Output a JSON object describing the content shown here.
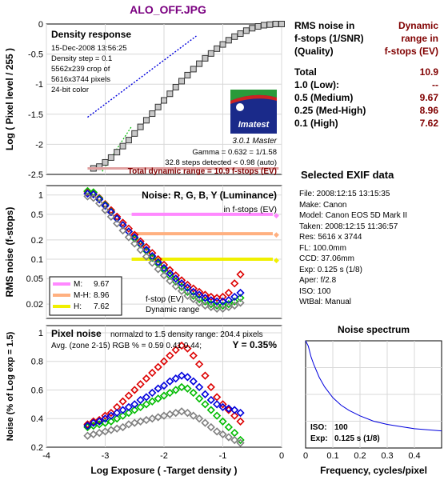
{
  "title": "ALO_OFF.JPG",
  "stats": {
    "header_left": [
      "RMS noise in",
      "f-stops (1/SNR)",
      "(Quality)"
    ],
    "header_right": [
      "Dynamic",
      "range in",
      "f-stops (EV)"
    ],
    "rows": [
      {
        "label": "Total",
        "value": "10.9"
      },
      {
        "label": "1.0   (Low):",
        "value": "--"
      },
      {
        "label": "0.5   (Medium)",
        "value": "9.67"
      },
      {
        "label": "0.25 (Med-High)",
        "value": "8.96"
      },
      {
        "label": "0.1   (High)",
        "value": "7.62"
      }
    ]
  },
  "exif": {
    "title": "Selected EXIF data",
    "lines": [
      "File:  2008:12:15 13:15:35",
      "Make:  Canon",
      "Model: Canon EOS 5D Mark II",
      "Taken: 2008:12:15 11:36:57",
      "Res:   5616 x 3744",
      "FL:  100.0mm",
      "CCD:   37.06mm",
      "Exp:   0.125 s  (1/8)",
      "Aper:  f/2.8",
      "ISO:   100",
      "WtBal:  Manual"
    ]
  },
  "colors": {
    "red": "#dd0000",
    "green": "#00bb00",
    "blue": "#0000dd",
    "gray": "#808080",
    "magenta": "#ff88ff",
    "orange": "#ffb080",
    "yellow": "#f0f000",
    "dark_red": "#800000"
  },
  "chart_data": [
    {
      "type": "line",
      "title": "Density response",
      "info_lines": [
        "15-Dec-2008 13:56:25",
        "Density step = 0.1",
        "5562x239 crop of",
        "5616x3744 pixels",
        "24-bit color"
      ],
      "ylabel": "Log ( Pixel level / 255 )",
      "xlim": [
        -4,
        0
      ],
      "ylim": [
        -2.5,
        0
      ],
      "yticks": [
        "0",
        "-0.5",
        "-1",
        "-1.5",
        "-2",
        "-2.5"
      ],
      "logo_text": "Imatest",
      "version_text": "3.0.1  Master",
      "gamma_text": "Gamma = 0.632 = 1/1.58",
      "steps_text": "32.8 steps detected < 0.98 (auto)",
      "dynamic_range_text": "Total dynamic range = 10.9 f-stops (EV)",
      "x": [
        -3.2,
        -3.1,
        -3.0,
        -2.9,
        -2.8,
        -2.7,
        -2.6,
        -2.5,
        -2.4,
        -2.3,
        -2.2,
        -2.1,
        -2.0,
        -1.9,
        -1.8,
        -1.7,
        -1.6,
        -1.5,
        -1.4,
        -1.3,
        -1.2,
        -1.1,
        -1.0,
        -0.9,
        -0.8,
        -0.7,
        -0.6,
        -0.5,
        -0.4,
        -0.3,
        -0.2,
        -0.1,
        0.0
      ],
      "y": [
        -2.4,
        -2.37,
        -2.3,
        -2.22,
        -2.13,
        -2.03,
        -1.93,
        -1.82,
        -1.71,
        -1.6,
        -1.49,
        -1.38,
        -1.27,
        -1.16,
        -1.05,
        -0.95,
        -0.85,
        -0.75,
        -0.66,
        -0.57,
        -0.49,
        -0.41,
        -0.34,
        -0.27,
        -0.21,
        -0.16,
        -0.11,
        -0.07,
        -0.04,
        -0.02,
        -0.01,
        0.0,
        0.0
      ]
    },
    {
      "type": "line",
      "title": "Noise: R, G, B, Y (Luminance)",
      "subtitle": "in f-stops (EV)",
      "ylabel": "RMS noise (f-stops)",
      "xlim": [
        -4,
        0
      ],
      "ylim_log": [
        0.012,
        1.4
      ],
      "yticks": [
        "1",
        "0.5",
        "0.2",
        "0.1",
        "0.05",
        "0.02"
      ],
      "legend": [
        {
          "label": "M:",
          "value": "9.67"
        },
        {
          "label": "M-H:",
          "value": "8.96"
        },
        {
          "label": "H:",
          "value": "7.62"
        }
      ],
      "annotation_lines": [
        "f-stop (EV)",
        "Dynamic range"
      ],
      "x": [
        -3.3,
        -3.2,
        -3.1,
        -3.0,
        -2.9,
        -2.8,
        -2.7,
        -2.6,
        -2.5,
        -2.4,
        -2.3,
        -2.2,
        -2.1,
        -2.0,
        -1.9,
        -1.8,
        -1.7,
        -1.6,
        -1.5,
        -1.4,
        -1.3,
        -1.2,
        -1.1,
        -1.0,
        -0.9,
        -0.8,
        -0.7
      ],
      "series": [
        {
          "name": "R",
          "values": [
            1.12,
            1.08,
            0.9,
            0.72,
            0.58,
            0.46,
            0.37,
            0.3,
            0.24,
            0.19,
            0.155,
            0.125,
            0.1,
            0.082,
            0.068,
            0.056,
            0.047,
            0.04,
            0.035,
            0.031,
            0.028,
            0.026,
            0.025,
            0.026,
            0.03,
            0.042,
            0.058
          ]
        },
        {
          "name": "G",
          "values": [
            1.15,
            1.1,
            0.88,
            0.7,
            0.55,
            0.43,
            0.34,
            0.27,
            0.21,
            0.17,
            0.135,
            0.105,
            0.085,
            0.068,
            0.055,
            0.045,
            0.037,
            0.031,
            0.027,
            0.024,
            0.022,
            0.02,
            0.019,
            0.019,
            0.02,
            0.022,
            0.025
          ]
        },
        {
          "name": "B",
          "values": [
            1.05,
            1.02,
            0.85,
            0.68,
            0.54,
            0.43,
            0.34,
            0.27,
            0.22,
            0.175,
            0.14,
            0.112,
            0.09,
            0.073,
            0.06,
            0.05,
            0.042,
            0.036,
            0.031,
            0.028,
            0.025,
            0.023,
            0.022,
            0.022,
            0.023,
            0.026,
            0.03
          ]
        },
        {
          "name": "Y",
          "values": [
            0.95,
            0.9,
            0.74,
            0.58,
            0.46,
            0.36,
            0.28,
            0.22,
            0.175,
            0.14,
            0.11,
            0.088,
            0.07,
            0.056,
            0.046,
            0.038,
            0.032,
            0.027,
            0.024,
            0.021,
            0.019,
            0.018,
            0.017,
            0.017,
            0.018,
            0.019,
            0.021
          ]
        }
      ],
      "thresholds": [
        0.5,
        0.25,
        0.1
      ]
    },
    {
      "type": "line",
      "title": "Pixel noise",
      "subtitle": "normalzd to 1.5 density range: 204.4 pixels",
      "summary_text": "Avg. (zone 2-15) RGB % = 0.59  0.41  0.44;",
      "y_summary": "Y = 0.35%",
      "xlabel": "Log Exposure ( -Target density )",
      "ylabel": "Noise (% of Log exp = 1.5)",
      "xlim": [
        -4,
        0
      ],
      "ylim": [
        0.2,
        1.05
      ],
      "xticks": [
        "-4",
        "-3",
        "-2",
        "-1",
        "0"
      ],
      "yticks": [
        "1",
        "0.8",
        "0.6",
        "0.4",
        "0.2"
      ],
      "x": [
        -3.3,
        -3.2,
        -3.1,
        -3.0,
        -2.9,
        -2.8,
        -2.7,
        -2.6,
        -2.5,
        -2.4,
        -2.3,
        -2.2,
        -2.1,
        -2.0,
        -1.9,
        -1.8,
        -1.7,
        -1.6,
        -1.5,
        -1.4,
        -1.3,
        -1.2,
        -1.1,
        -1.0,
        -0.9,
        -0.8,
        -0.7
      ],
      "series": [
        {
          "name": "R",
          "values": [
            0.36,
            0.38,
            0.39,
            0.42,
            0.44,
            0.48,
            0.52,
            0.56,
            0.6,
            0.64,
            0.68,
            0.72,
            0.76,
            0.8,
            0.84,
            0.88,
            0.91,
            0.89,
            0.84,
            0.78,
            0.7,
            0.62,
            0.55,
            0.5,
            0.46,
            0.42,
            0.38
          ]
        },
        {
          "name": "G",
          "values": [
            0.34,
            0.35,
            0.36,
            0.37,
            0.38,
            0.4,
            0.42,
            0.44,
            0.46,
            0.48,
            0.5,
            0.52,
            0.54,
            0.56,
            0.58,
            0.6,
            0.62,
            0.61,
            0.58,
            0.54,
            0.5,
            0.46,
            0.42,
            0.38,
            0.34,
            0.3,
            0.25
          ]
        },
        {
          "name": "B",
          "values": [
            0.35,
            0.37,
            0.38,
            0.4,
            0.42,
            0.44,
            0.46,
            0.48,
            0.5,
            0.53,
            0.55,
            0.58,
            0.61,
            0.63,
            0.66,
            0.68,
            0.7,
            0.69,
            0.66,
            0.62,
            0.57,
            0.53,
            0.5,
            0.48,
            0.47,
            0.46,
            0.44
          ]
        },
        {
          "name": "Y",
          "values": [
            0.28,
            0.29,
            0.3,
            0.31,
            0.32,
            0.33,
            0.34,
            0.36,
            0.37,
            0.38,
            0.39,
            0.4,
            0.41,
            0.42,
            0.43,
            0.44,
            0.45,
            0.44,
            0.42,
            0.4,
            0.37,
            0.34,
            0.31,
            0.29,
            0.27,
            0.25,
            0.23
          ]
        }
      ]
    },
    {
      "type": "line",
      "title": "Noise spectrum",
      "xlabel": "Frequency, cycles/pixel",
      "xlim": [
        0,
        0.5
      ],
      "ylim": [
        0,
        1
      ],
      "xticks": [
        "0",
        "0.1",
        "0.2",
        "0.3",
        "0.4"
      ],
      "iso_label": "ISO:",
      "iso_value": "100",
      "exp_label": "Exp:",
      "exp_value": "0.125 s  (1/8)",
      "x": [
        0.0,
        0.01,
        0.02,
        0.03,
        0.05,
        0.07,
        0.1,
        0.13,
        0.16,
        0.2,
        0.25,
        0.3,
        0.35,
        0.4,
        0.45,
        0.5
      ],
      "y": [
        1.0,
        0.95,
        0.85,
        0.78,
        0.66,
        0.57,
        0.47,
        0.4,
        0.35,
        0.3,
        0.25,
        0.22,
        0.2,
        0.18,
        0.17,
        0.16
      ]
    }
  ]
}
